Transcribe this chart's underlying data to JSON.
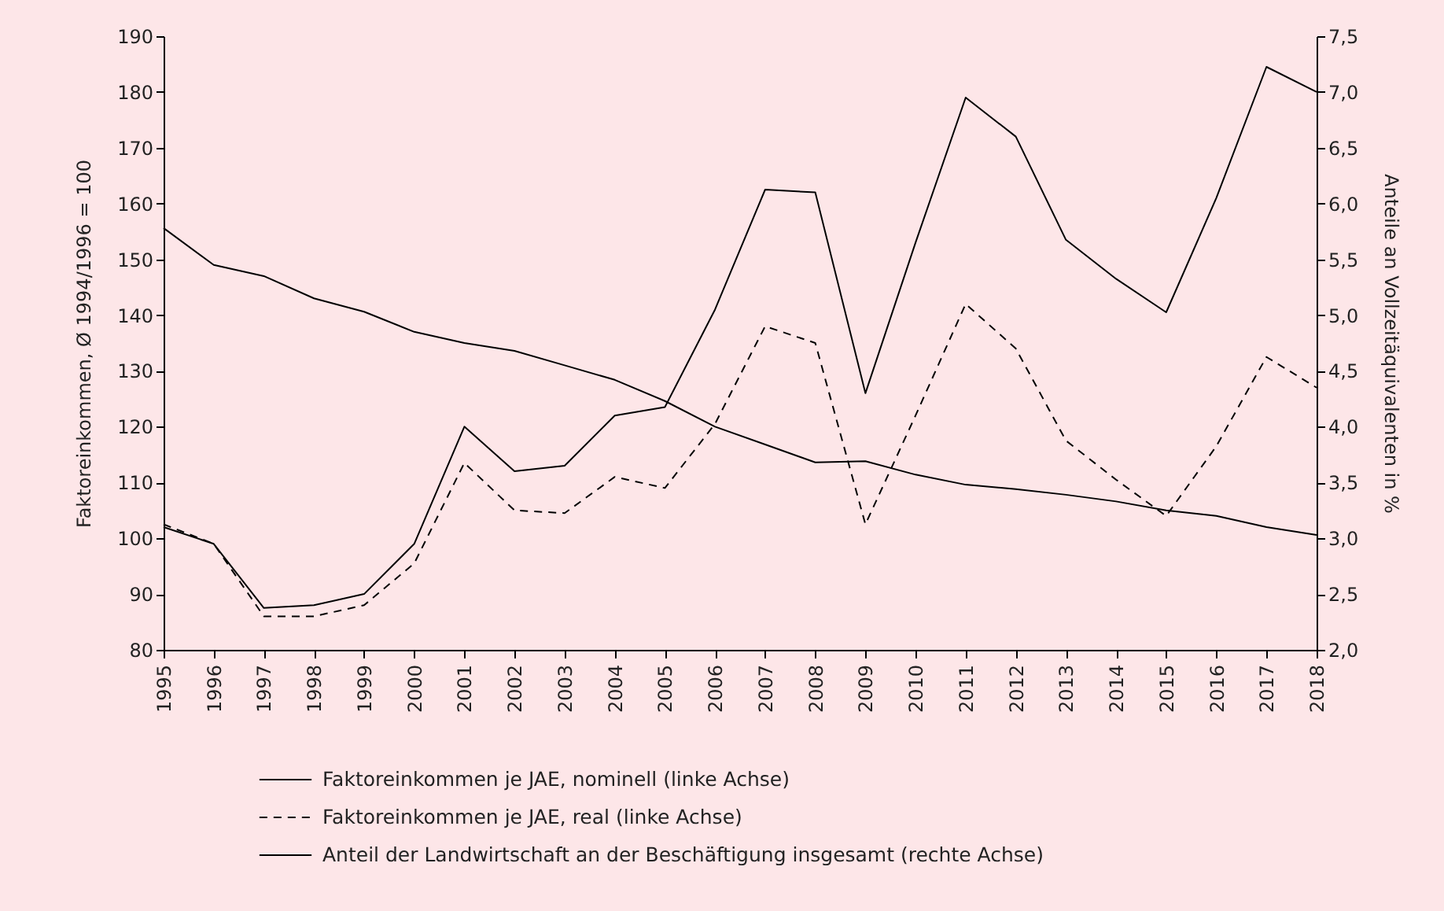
{
  "chart_data": {
    "type": "line",
    "categories": [
      "1995",
      "1996",
      "1997",
      "1998",
      "1999",
      "2000",
      "2001",
      "2002",
      "2003",
      "2004",
      "2005",
      "2006",
      "2007",
      "2008",
      "2009",
      "2010",
      "2011",
      "2012",
      "2013",
      "2014",
      "2015",
      "2016",
      "2017",
      "2018"
    ],
    "ylabel": "Faktoreinkommen, Ø 1994/1996 = 100",
    "y2label": "Anteile an Vollzeitäquivalenten in %",
    "ylim": [
      80,
      190
    ],
    "yticks": [
      80,
      90,
      100,
      110,
      120,
      130,
      140,
      150,
      160,
      170,
      180,
      190
    ],
    "y2lim": [
      2.0,
      7.5
    ],
    "y2ticks": [
      {
        "value": 2.0,
        "label": "2,0"
      },
      {
        "value": 2.5,
        "label": "2,5"
      },
      {
        "value": 3.0,
        "label": "3,0"
      },
      {
        "value": 3.5,
        "label": "3,5"
      },
      {
        "value": 4.0,
        "label": "4,0"
      },
      {
        "value": 4.5,
        "label": "4,5"
      },
      {
        "value": 5.0,
        "label": "5,0"
      },
      {
        "value": 5.5,
        "label": "5,5"
      },
      {
        "value": 6.0,
        "label": "6,0"
      },
      {
        "value": 6.5,
        "label": "6,5"
      },
      {
        "value": 7.0,
        "label": "7,0"
      },
      {
        "value": 7.5,
        "label": "7,5"
      }
    ],
    "grid": false,
    "legend": "bottom",
    "marker": "none",
    "series": [
      {
        "name": "Faktoreinkommen je JAE, nominell (linke Achse)",
        "color": "#000000",
        "line_style": "solid",
        "values": [
          102,
          99,
          87.5,
          88,
          90,
          99,
          120,
          112,
          113,
          122,
          123.5,
          141,
          162.5,
          162,
          126,
          153,
          179,
          172,
          153.5,
          146.5,
          140.5,
          161,
          184.5,
          180
        ]
      },
      {
        "name": "Faktoreinkommen je JAE, real (linke Achse)",
        "color": "#000000",
        "line_style": "dashed",
        "values": [
          102.5,
          99,
          86,
          86,
          88,
          95.5,
          113.5,
          105,
          104.5,
          111,
          109,
          120.5,
          138,
          135,
          102.5,
          122,
          142,
          134,
          117.5,
          110.5,
          104,
          116.5,
          132.5,
          127
        ]
      },
      {
        "name": "Anteil der Landwirtschaft an der Beschäftigung insgesamt (rechte Achse)",
        "color": "#000000",
        "line_style": "solid",
        "axis": "y2",
        "values": [
          5.78,
          5.45,
          5.35,
          5.15,
          5.03,
          4.85,
          4.75,
          4.68,
          4.55,
          4.42,
          4.23,
          4.0,
          3.84,
          3.68,
          3.69,
          3.57,
          3.48,
          3.44,
          3.39,
          3.33,
          3.25,
          3.2,
          3.1,
          3.03
        ]
      }
    ]
  }
}
